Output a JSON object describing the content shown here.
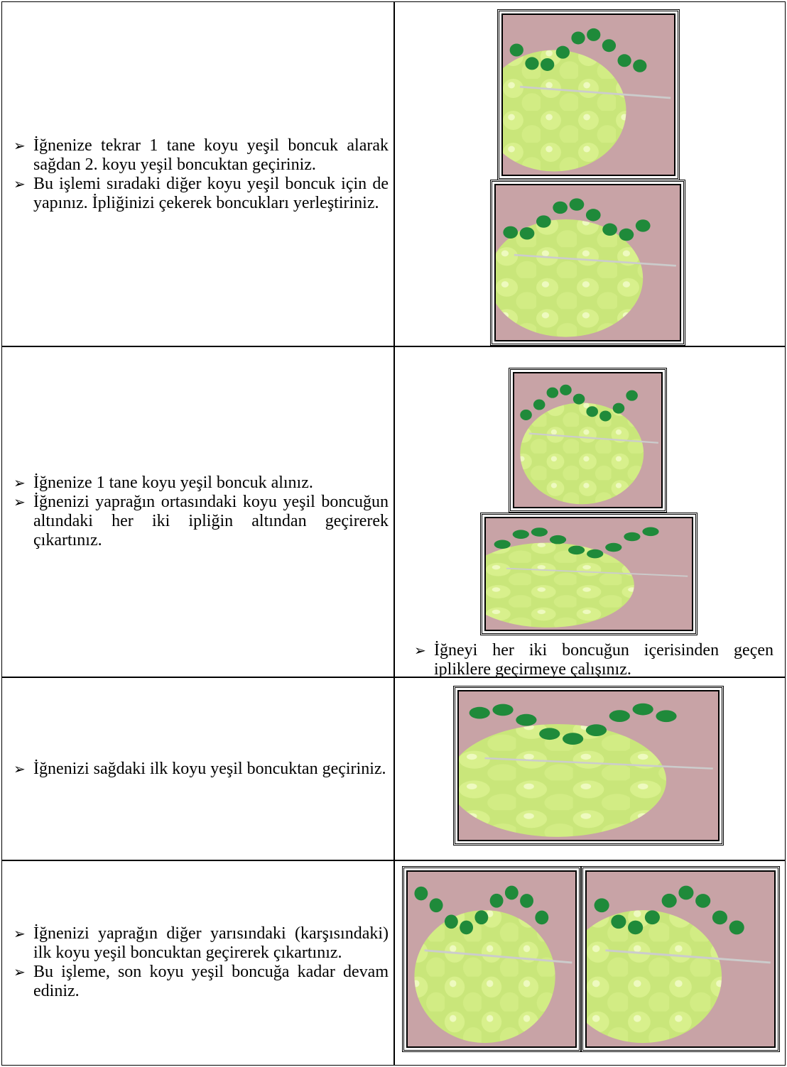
{
  "rows": [
    {
      "bullets": [
        "İğnenize tekrar 1 tane koyu yeşil boncuk alarak sağdan 2. koyu yeşil boncuktan geçiriniz.",
        "Bu işlemi sıradaki diğer koyu yeşil boncuk için de yapınız. İpliğinizi çekerek boncukları yerleştiriniz."
      ]
    },
    {
      "bullets": [
        "İğnenize 1 tane koyu yeşil boncuk alınız.",
        "İğnenizi yaprağın ortasındaki koyu yeşil boncuğun altındaki her iki ipliğin altından geçirerek çıkartınız."
      ],
      "caption": "İğneyi her iki boncuğun içerisinden geçen ipliklere geçirmeye çalışınız."
    },
    {
      "bullets": [
        "İğnenizi sağdaki ilk koyu yeşil boncuktan geçiriniz."
      ]
    },
    {
      "bullets": [
        "İğnenizi yaprağın diğer yarısındaki (karşısındaki) ilk koyu yeşil boncuktan geçirerek çıkartınız.",
        "Bu işleme, son koyu yeşil boncuğa kadar devam ediniz."
      ]
    }
  ]
}
